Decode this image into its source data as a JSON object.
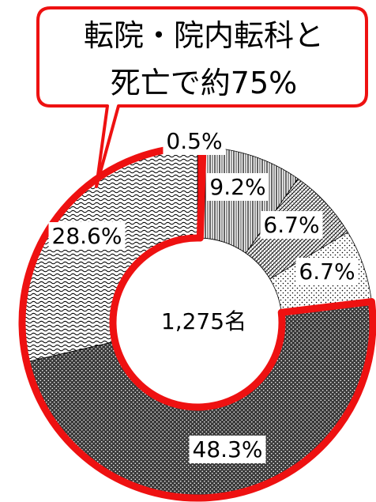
{
  "chart_data": {
    "type": "pie",
    "donut": true,
    "center_label": "1,275名",
    "slices": [
      {
        "label": "0.5%",
        "value": 0.5,
        "pattern": "solid-red"
      },
      {
        "label": "9.2%",
        "value": 9.2,
        "pattern": "vertical-lines"
      },
      {
        "label": "6.7%",
        "value": 6.7,
        "pattern": "diagonal-hatch"
      },
      {
        "label": "6.7%",
        "value": 6.7,
        "pattern": "dots"
      },
      {
        "label": "48.3%",
        "value": 48.3,
        "pattern": "dense-grid"
      },
      {
        "label": "28.6%",
        "value": 28.6,
        "pattern": "waves"
      }
    ],
    "callout": {
      "lines": [
        "転院・院内転科と",
        "死亡で約75%"
      ],
      "highlighted_slices": [
        4,
        5,
        0
      ]
    },
    "colors": {
      "highlight": "#ee1111",
      "ink": "#000000"
    }
  }
}
